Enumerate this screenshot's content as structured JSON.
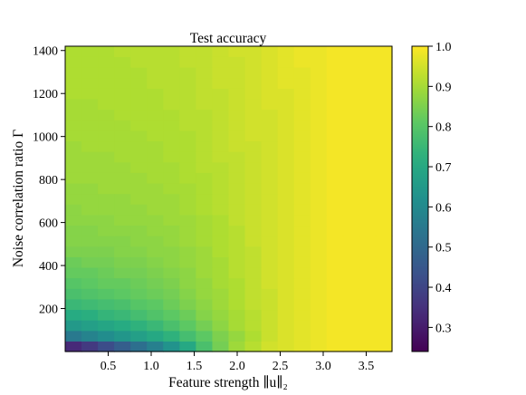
{
  "chart_data": {
    "type": "heatmap",
    "title": "Test accuracy",
    "xlabel": "Feature strength ∥u∥₂",
    "ylabel": "Noise correlation ratio Γ",
    "xlim": [
      0.0,
      3.8
    ],
    "ylim": [
      0,
      1420
    ],
    "x_ticks": [
      0.5,
      1.0,
      1.5,
      2.0,
      2.5,
      3.0,
      3.5
    ],
    "x_tick_labels": [
      "0.5",
      "1.0",
      "1.5",
      "2.0",
      "2.5",
      "3.0",
      "3.5"
    ],
    "y_ticks": [
      200,
      400,
      600,
      800,
      1000,
      1200,
      1400
    ],
    "y_tick_labels": [
      "200",
      "400",
      "600",
      "800",
      "1000",
      "1200",
      "1400"
    ],
    "colorbar": {
      "colormap": "viridis",
      "range": [
        0.24,
        1.0
      ],
      "ticks": [
        0.3,
        0.4,
        0.5,
        0.6,
        0.7,
        0.8,
        0.9,
        1.0
      ],
      "tick_labels": [
        "0.3",
        "0.4",
        "0.5",
        "0.6",
        "0.7",
        "0.8",
        "0.9",
        "1.0"
      ]
    },
    "grid": {
      "n_cols": 20,
      "n_rows": 29,
      "x_start": 0.0,
      "x_step": 0.19,
      "y_start": 0,
      "y_step": 49,
      "row_order": "bottom-to-top",
      "values": [
        [
          0.33,
          0.37,
          0.42,
          0.47,
          0.52,
          0.57,
          0.63,
          0.7,
          0.78,
          0.84,
          0.89,
          0.92,
          0.95,
          0.96,
          0.97,
          0.98,
          0.99,
          0.99,
          0.99,
          0.99
        ],
        [
          0.55,
          0.58,
          0.61,
          0.64,
          0.67,
          0.7,
          0.73,
          0.77,
          0.81,
          0.85,
          0.88,
          0.91,
          0.94,
          0.96,
          0.97,
          0.98,
          0.99,
          0.99,
          0.99,
          0.99
        ],
        [
          0.65,
          0.67,
          0.69,
          0.71,
          0.73,
          0.75,
          0.78,
          0.81,
          0.84,
          0.87,
          0.9,
          0.92,
          0.94,
          0.96,
          0.97,
          0.98,
          0.99,
          0.99,
          0.99,
          0.99
        ],
        [
          0.71,
          0.72,
          0.74,
          0.75,
          0.77,
          0.79,
          0.81,
          0.83,
          0.86,
          0.88,
          0.9,
          0.92,
          0.94,
          0.96,
          0.97,
          0.98,
          0.99,
          0.99,
          0.99,
          0.99
        ],
        [
          0.75,
          0.76,
          0.77,
          0.78,
          0.8,
          0.81,
          0.83,
          0.85,
          0.87,
          0.89,
          0.91,
          0.93,
          0.94,
          0.96,
          0.97,
          0.98,
          0.99,
          0.99,
          0.99,
          0.99
        ],
        [
          0.78,
          0.79,
          0.8,
          0.81,
          0.82,
          0.83,
          0.84,
          0.86,
          0.88,
          0.89,
          0.91,
          0.93,
          0.94,
          0.96,
          0.97,
          0.98,
          0.99,
          0.99,
          0.99,
          0.99
        ],
        [
          0.8,
          0.81,
          0.82,
          0.82,
          0.83,
          0.84,
          0.85,
          0.87,
          0.88,
          0.9,
          0.91,
          0.93,
          0.95,
          0.96,
          0.97,
          0.98,
          0.99,
          0.99,
          0.99,
          0.99
        ],
        [
          0.82,
          0.82,
          0.83,
          0.84,
          0.84,
          0.85,
          0.86,
          0.87,
          0.89,
          0.9,
          0.92,
          0.93,
          0.95,
          0.96,
          0.97,
          0.98,
          0.99,
          0.99,
          0.99,
          0.99
        ],
        [
          0.83,
          0.84,
          0.84,
          0.85,
          0.85,
          0.86,
          0.87,
          0.88,
          0.89,
          0.9,
          0.92,
          0.93,
          0.95,
          0.96,
          0.97,
          0.98,
          0.99,
          0.99,
          0.99,
          0.99
        ],
        [
          0.85,
          0.85,
          0.85,
          0.86,
          0.86,
          0.87,
          0.87,
          0.88,
          0.89,
          0.91,
          0.92,
          0.93,
          0.95,
          0.96,
          0.97,
          0.98,
          0.99,
          0.99,
          0.99,
          0.99
        ],
        [
          0.86,
          0.86,
          0.86,
          0.86,
          0.87,
          0.87,
          0.88,
          0.89,
          0.9,
          0.91,
          0.92,
          0.94,
          0.95,
          0.96,
          0.97,
          0.98,
          0.99,
          0.99,
          0.99,
          0.99
        ],
        [
          0.86,
          0.86,
          0.87,
          0.87,
          0.87,
          0.88,
          0.88,
          0.89,
          0.9,
          0.91,
          0.92,
          0.94,
          0.95,
          0.96,
          0.97,
          0.98,
          0.99,
          0.99,
          0.99,
          0.99
        ],
        [
          0.87,
          0.87,
          0.87,
          0.88,
          0.88,
          0.88,
          0.89,
          0.89,
          0.9,
          0.91,
          0.93,
          0.94,
          0.95,
          0.96,
          0.97,
          0.98,
          0.99,
          0.99,
          0.99,
          0.99
        ],
        [
          0.87,
          0.88,
          0.88,
          0.88,
          0.88,
          0.89,
          0.89,
          0.9,
          0.91,
          0.92,
          0.93,
          0.94,
          0.95,
          0.96,
          0.97,
          0.98,
          0.99,
          0.99,
          0.99,
          0.99
        ],
        [
          0.88,
          0.88,
          0.88,
          0.88,
          0.89,
          0.89,
          0.89,
          0.9,
          0.91,
          0.92,
          0.93,
          0.94,
          0.95,
          0.96,
          0.97,
          0.98,
          0.99,
          0.99,
          0.99,
          0.99
        ],
        [
          0.88,
          0.88,
          0.89,
          0.89,
          0.89,
          0.89,
          0.9,
          0.9,
          0.91,
          0.92,
          0.93,
          0.94,
          0.95,
          0.96,
          0.97,
          0.98,
          0.99,
          0.99,
          0.99,
          0.99
        ],
        [
          0.89,
          0.89,
          0.89,
          0.89,
          0.89,
          0.9,
          0.9,
          0.91,
          0.91,
          0.92,
          0.93,
          0.94,
          0.95,
          0.96,
          0.97,
          0.98,
          0.99,
          0.99,
          0.99,
          0.99
        ],
        [
          0.89,
          0.89,
          0.89,
          0.89,
          0.9,
          0.9,
          0.9,
          0.91,
          0.92,
          0.92,
          0.93,
          0.94,
          0.95,
          0.96,
          0.97,
          0.98,
          0.99,
          0.99,
          0.99,
          0.99
        ],
        [
          0.89,
          0.89,
          0.89,
          0.9,
          0.9,
          0.9,
          0.91,
          0.91,
          0.92,
          0.93,
          0.93,
          0.94,
          0.95,
          0.96,
          0.97,
          0.98,
          0.99,
          0.99,
          0.99,
          0.99
        ],
        [
          0.89,
          0.9,
          0.9,
          0.9,
          0.9,
          0.9,
          0.91,
          0.91,
          0.92,
          0.93,
          0.94,
          0.94,
          0.95,
          0.96,
          0.97,
          0.98,
          0.99,
          0.99,
          0.99,
          0.99
        ],
        [
          0.9,
          0.9,
          0.9,
          0.9,
          0.9,
          0.91,
          0.91,
          0.91,
          0.92,
          0.93,
          0.94,
          0.95,
          0.95,
          0.96,
          0.97,
          0.98,
          0.99,
          0.99,
          0.99,
          0.99
        ],
        [
          0.9,
          0.9,
          0.9,
          0.9,
          0.91,
          0.91,
          0.91,
          0.92,
          0.92,
          0.93,
          0.94,
          0.95,
          0.95,
          0.96,
          0.97,
          0.98,
          0.99,
          0.99,
          0.99,
          0.99
        ],
        [
          0.9,
          0.9,
          0.9,
          0.91,
          0.91,
          0.91,
          0.91,
          0.92,
          0.92,
          0.93,
          0.94,
          0.95,
          0.95,
          0.96,
          0.97,
          0.98,
          0.99,
          0.99,
          0.99,
          0.99
        ],
        [
          0.9,
          0.9,
          0.91,
          0.91,
          0.91,
          0.91,
          0.92,
          0.92,
          0.93,
          0.93,
          0.94,
          0.95,
          0.96,
          0.96,
          0.97,
          0.98,
          0.99,
          0.99,
          0.99,
          0.99
        ],
        [
          0.91,
          0.91,
          0.91,
          0.91,
          0.91,
          0.91,
          0.92,
          0.92,
          0.93,
          0.93,
          0.94,
          0.95,
          0.96,
          0.96,
          0.97,
          0.98,
          0.99,
          0.99,
          0.99,
          0.99
        ],
        [
          0.91,
          0.91,
          0.91,
          0.91,
          0.91,
          0.92,
          0.92,
          0.92,
          0.93,
          0.94,
          0.94,
          0.95,
          0.96,
          0.97,
          0.97,
          0.98,
          0.99,
          0.99,
          0.99,
          0.99
        ],
        [
          0.91,
          0.91,
          0.91,
          0.91,
          0.91,
          0.92,
          0.92,
          0.92,
          0.93,
          0.94,
          0.94,
          0.95,
          0.96,
          0.97,
          0.97,
          0.98,
          0.99,
          0.99,
          0.99,
          0.99
        ],
        [
          0.91,
          0.91,
          0.91,
          0.91,
          0.92,
          0.92,
          0.92,
          0.93,
          0.93,
          0.94,
          0.94,
          0.95,
          0.96,
          0.97,
          0.98,
          0.98,
          0.99,
          0.99,
          0.99,
          0.99
        ],
        [
          0.91,
          0.91,
          0.91,
          0.92,
          0.92,
          0.92,
          0.92,
          0.93,
          0.93,
          0.94,
          0.95,
          0.95,
          0.96,
          0.97,
          0.98,
          0.98,
          0.99,
          0.99,
          0.99,
          0.99
        ]
      ]
    }
  }
}
